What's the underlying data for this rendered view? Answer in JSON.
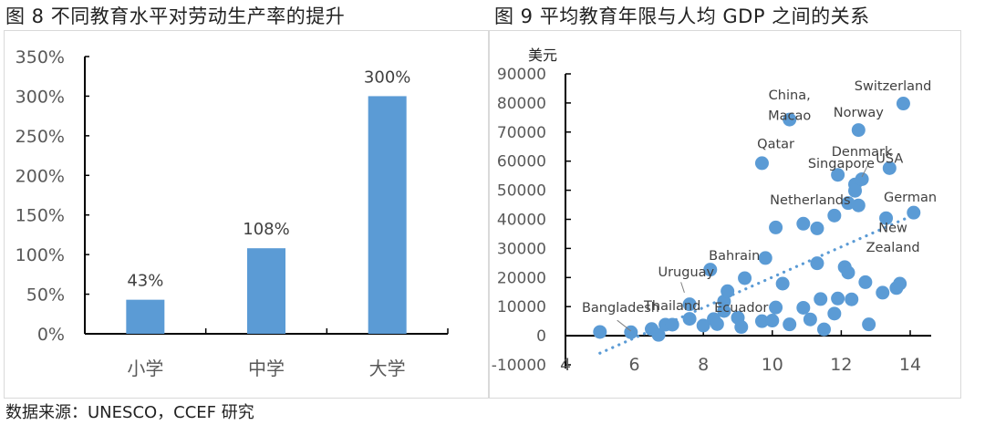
{
  "figures": {
    "left_title": "图 8  不同教育水平对劳动生产率的提升",
    "right_title": "图 9  平均教育年限与人均 GDP 之间的关系"
  },
  "footer": {
    "source": "数据来源：UNESCO，CCEF 研究"
  },
  "colors": {
    "bar": "#5b9bd5",
    "point": "#5b9bd5",
    "trend": "#5b9bd5",
    "axis": "#000000",
    "label": "#595959"
  },
  "chart_data": [
    {
      "type": "bar",
      "title": "图 8  不同教育水平对劳动生产率的提升",
      "categories": [
        "小学",
        "中学",
        "大学"
      ],
      "values": [
        43,
        108,
        300
      ],
      "value_labels": [
        "43%",
        "108%",
        "300%"
      ],
      "xlabel": "",
      "ylabel": "",
      "ylim": [
        0,
        350
      ],
      "yticks": [
        "0%",
        "50%",
        "100%",
        "150%",
        "200%",
        "250%",
        "300%",
        "350%"
      ],
      "grid": false,
      "legend": null
    },
    {
      "type": "scatter",
      "title": "图 9  平均教育年限与人均 GDP 之间的关系",
      "ylabel": "美元",
      "xlabel": "",
      "xlim": [
        4,
        15
      ],
      "ylim": [
        -10000,
        90000
      ],
      "xticks": [
        "4",
        "6",
        "8",
        "10",
        "12",
        "14"
      ],
      "yticks": [
        "-10000",
        "0",
        "10000",
        "20000",
        "30000",
        "40000",
        "50000",
        "60000",
        "70000",
        "80000",
        "90000"
      ],
      "grid": false,
      "trendline": {
        "type": "linear",
        "style": "dotted",
        "x": [
          5.0,
          14.1
        ],
        "y": [
          -6000,
          41500
        ]
      },
      "points": [
        {
          "x": 5.0,
          "y": 1300
        },
        {
          "x": 5.9,
          "y": 1200
        },
        {
          "x": 6.5,
          "y": 2300
        },
        {
          "x": 6.7,
          "y": 300
        },
        {
          "x": 6.9,
          "y": 3800
        },
        {
          "x": 7.1,
          "y": 3800
        },
        {
          "x": 7.6,
          "y": 10800
        },
        {
          "x": 7.6,
          "y": 5800
        },
        {
          "x": 8.0,
          "y": 3500
        },
        {
          "x": 8.2,
          "y": 22700
        },
        {
          "x": 8.3,
          "y": 5700
        },
        {
          "x": 8.4,
          "y": 4000
        },
        {
          "x": 8.6,
          "y": 11800
        },
        {
          "x": 8.6,
          "y": 8500
        },
        {
          "x": 8.7,
          "y": 15300
        },
        {
          "x": 9.0,
          "y": 6200
        },
        {
          "x": 9.1,
          "y": 3000
        },
        {
          "x": 9.2,
          "y": 19800
        },
        {
          "x": 9.7,
          "y": 59300
        },
        {
          "x": 9.7,
          "y": 5000
        },
        {
          "x": 9.8,
          "y": 26700
        },
        {
          "x": 10.0,
          "y": 5200
        },
        {
          "x": 10.1,
          "y": 9700
        },
        {
          "x": 10.1,
          "y": 37200
        },
        {
          "x": 10.3,
          "y": 17900
        },
        {
          "x": 10.5,
          "y": 74300
        },
        {
          "x": 10.5,
          "y": 3900
        },
        {
          "x": 10.9,
          "y": 9600
        },
        {
          "x": 10.9,
          "y": 38500
        },
        {
          "x": 11.1,
          "y": 5600
        },
        {
          "x": 11.3,
          "y": 36900
        },
        {
          "x": 11.3,
          "y": 24900
        },
        {
          "x": 11.4,
          "y": 12600
        },
        {
          "x": 11.5,
          "y": 2200
        },
        {
          "x": 11.8,
          "y": 41300
        },
        {
          "x": 11.8,
          "y": 7600
        },
        {
          "x": 11.9,
          "y": 55300
        },
        {
          "x": 11.9,
          "y": 12800
        },
        {
          "x": 12.1,
          "y": 23600
        },
        {
          "x": 12.2,
          "y": 45600
        },
        {
          "x": 12.2,
          "y": 21700
        },
        {
          "x": 12.3,
          "y": 12500
        },
        {
          "x": 12.4,
          "y": 52000
        },
        {
          "x": 12.4,
          "y": 49800
        },
        {
          "x": 12.5,
          "y": 70700
        },
        {
          "x": 12.5,
          "y": 44800
        },
        {
          "x": 12.6,
          "y": 53800
        },
        {
          "x": 12.7,
          "y": 18400
        },
        {
          "x": 12.8,
          "y": 3900
        },
        {
          "x": 13.2,
          "y": 14800
        },
        {
          "x": 13.3,
          "y": 40400
        },
        {
          "x": 13.4,
          "y": 57600
        },
        {
          "x": 13.6,
          "y": 16400
        },
        {
          "x": 13.7,
          "y": 17900
        },
        {
          "x": 13.8,
          "y": 79800
        },
        {
          "x": 14.1,
          "y": 42300
        }
      ],
      "annotations": [
        {
          "text": "Switzerland",
          "x": 13.5,
          "y": 86000
        },
        {
          "text": "China,",
          "x": 10.5,
          "y": 82800
        },
        {
          "text": "Macao",
          "x": 10.5,
          "y": 75800
        },
        {
          "text": "Norway",
          "x": 12.5,
          "y": 76800
        },
        {
          "text": "Qatar",
          "x": 10.1,
          "y": 66000
        },
        {
          "text": "Denmark",
          "x": 12.6,
          "y": 63400
        },
        {
          "text": "USA",
          "x": 13.4,
          "y": 61000
        },
        {
          "text": "Singapore",
          "x": 12.0,
          "y": 59300
        },
        {
          "text": "Netherlands",
          "x": 11.1,
          "y": 46700
        },
        {
          "text": "German",
          "x": 14.0,
          "y": 47700
        },
        {
          "text": "New",
          "x": 13.5,
          "y": 37200
        },
        {
          "text": "Zealand",
          "x": 13.5,
          "y": 30500
        },
        {
          "text": "Bahrain",
          "x": 8.9,
          "y": 27600
        },
        {
          "text": "Uruguay",
          "x": 7.5,
          "y": 22000
        },
        {
          "text": "Thailand",
          "x": 7.1,
          "y": 10300
        },
        {
          "text": "Bangladesh",
          "x": 5.6,
          "y": 9800
        },
        {
          "text": "Ecuador",
          "x": 9.1,
          "y": 9800
        }
      ],
      "leader_lines": [
        {
          "label": "Bangladesh",
          "from": {
            "x": 5.5,
            "y": 5300
          },
          "to": {
            "x": 5.9,
            "y": 1600
          }
        },
        {
          "label": "Uruguay",
          "from": {
            "x": 7.35,
            "y": 18400
          },
          "to": {
            "x": 7.45,
            "y": 14800
          }
        },
        {
          "label": "Denmark",
          "from": {
            "x": 12.8,
            "y": 59300
          },
          "to": {
            "x": 12.6,
            "y": 54600
          }
        }
      ]
    }
  ]
}
